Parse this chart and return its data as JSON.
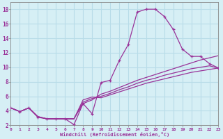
{
  "xlabel": "Windchill (Refroidissement éolien,°C)",
  "bg_color": "#d6eff5",
  "grid_color": "#b8dce8",
  "line_color": "#993399",
  "xlim": [
    0,
    23
  ],
  "ylim": [
    2,
    19
  ],
  "xticks": [
    0,
    1,
    2,
    3,
    4,
    5,
    6,
    7,
    8,
    9,
    10,
    11,
    12,
    13,
    14,
    15,
    16,
    17,
    18,
    19,
    20,
    21,
    22,
    23
  ],
  "yticks": [
    2,
    4,
    6,
    8,
    10,
    12,
    14,
    16,
    18
  ],
  "curve_main_x": [
    0,
    1,
    2,
    3,
    4,
    5,
    6,
    7,
    8,
    9,
    10,
    11,
    12,
    13,
    14,
    15,
    16,
    17,
    18,
    19,
    20,
    21,
    22,
    23
  ],
  "curve_main_y": [
    4.4,
    3.9,
    4.4,
    3.1,
    2.9,
    2.9,
    2.9,
    2.1,
    5.0,
    3.6,
    7.9,
    8.2,
    10.9,
    13.1,
    17.6,
    18.0,
    18.0,
    17.0,
    15.2,
    12.5,
    11.5,
    11.5,
    10.5,
    9.9
  ],
  "curve2_x": [
    0,
    1,
    2,
    3,
    4,
    5,
    6,
    7,
    8,
    9,
    10,
    11,
    12,
    13,
    14,
    15,
    16,
    17,
    18,
    19,
    20,
    21,
    22,
    23
  ],
  "curve2_y": [
    4.4,
    3.9,
    4.4,
    3.2,
    2.9,
    2.9,
    2.9,
    2.9,
    5.0,
    5.5,
    6.3,
    6.7,
    7.2,
    7.7,
    8.2,
    8.6,
    9.0,
    9.4,
    9.8,
    10.2,
    10.6,
    11.0,
    11.3,
    11.6
  ],
  "curve3_x": [
    0,
    1,
    2,
    3,
    4,
    5,
    6,
    7,
    8,
    9,
    10,
    11,
    12,
    13,
    14,
    15,
    16,
    17,
    18,
    19,
    20,
    21,
    22,
    23
  ],
  "curve3_y": [
    4.4,
    3.9,
    4.4,
    3.2,
    2.9,
    2.9,
    2.9,
    2.9,
    5.2,
    5.7,
    6.0,
    6.4,
    6.9,
    7.3,
    7.8,
    8.2,
    8.5,
    8.9,
    9.2,
    9.5,
    9.8,
    10.0,
    10.2,
    9.9
  ],
  "curve4_x": [
    0,
    1,
    2,
    3,
    4,
    5,
    6,
    7,
    8,
    9,
    10,
    11,
    12,
    13,
    14,
    15,
    16,
    17,
    18,
    19,
    20,
    21,
    22,
    23
  ],
  "curve4_y": [
    4.4,
    3.9,
    4.4,
    3.2,
    2.9,
    2.9,
    2.9,
    2.9,
    5.5,
    5.9,
    5.8,
    6.2,
    6.6,
    7.0,
    7.4,
    7.8,
    8.1,
    8.4,
    8.7,
    9.0,
    9.3,
    9.5,
    9.7,
    9.9
  ]
}
